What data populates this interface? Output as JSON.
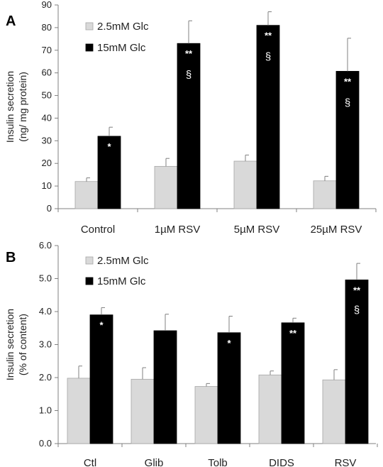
{
  "colors": {
    "low": "#d9d9d9",
    "high": "#000000",
    "axis": "#808080",
    "error": "#808080"
  },
  "chart_data": [
    {
      "type": "bar",
      "panel_label": "A",
      "ylabel_line1": "Insulin secretion",
      "ylabel_line2": "(ng/ mg protein)",
      "ylim": [
        0,
        90
      ],
      "yticks": [
        0,
        10,
        20,
        30,
        40,
        50,
        60,
        70,
        80,
        90
      ],
      "ytick_labels": [
        "0",
        "10",
        "20",
        "30",
        "40",
        "50",
        "60",
        "70",
        "80",
        "90"
      ],
      "legend_position": "top-left",
      "categories": [
        "Control",
        "1µM RSV",
        "5µM RSV",
        "25µM RSV"
      ],
      "series": [
        {
          "name": "2.5mM Glc",
          "values": [
            12,
            18.7,
            21,
            12.3
          ],
          "errors": [
            1.6,
            3.5,
            2.7,
            2
          ]
        },
        {
          "name": "15mM Glc",
          "values": [
            32,
            73,
            81,
            60.7
          ],
          "errors": [
            4,
            10,
            6,
            14.6
          ]
        }
      ],
      "annotations": [
        {
          "category": 0,
          "series": 1,
          "marks": [
            "*"
          ]
        },
        {
          "category": 1,
          "series": 1,
          "marks": [
            "**",
            "§"
          ]
        },
        {
          "category": 2,
          "series": 1,
          "marks": [
            "**",
            "§"
          ]
        },
        {
          "category": 3,
          "series": 1,
          "marks": [
            "**",
            "§"
          ]
        }
      ]
    },
    {
      "type": "bar",
      "panel_label": "B",
      "ylabel_line1": "Insulin secretion",
      "ylabel_line2": "(% of content)",
      "ylim": [
        0,
        6
      ],
      "yticks": [
        0,
        1,
        2,
        3,
        4,
        5,
        6
      ],
      "ytick_labels": [
        "0.0",
        "1.0",
        "2.0",
        "3.0",
        "4.0",
        "5.0",
        "6.0"
      ],
      "legend_position": "top-left",
      "categories": [
        "Ctl",
        "Glib",
        "Tolb",
        "DIDS",
        "RSV"
      ],
      "series": [
        {
          "name": "2.5mM Glc",
          "values": [
            1.98,
            1.95,
            1.73,
            2.08,
            1.93
          ],
          "errors": [
            0.37,
            0.35,
            0.09,
            0.12,
            0.31
          ]
        },
        {
          "name": "15mM Glc",
          "values": [
            3.9,
            3.42,
            3.36,
            3.66,
            4.96
          ],
          "errors": [
            0.22,
            0.5,
            0.5,
            0.14,
            0.5
          ]
        }
      ],
      "annotations": [
        {
          "category": 0,
          "series": 1,
          "marks": [
            "*"
          ]
        },
        {
          "category": 2,
          "series": 1,
          "marks": [
            "*"
          ]
        },
        {
          "category": 3,
          "series": 1,
          "marks": [
            "**"
          ]
        },
        {
          "category": 4,
          "series": 1,
          "marks": [
            "**",
            "§"
          ]
        }
      ]
    }
  ]
}
